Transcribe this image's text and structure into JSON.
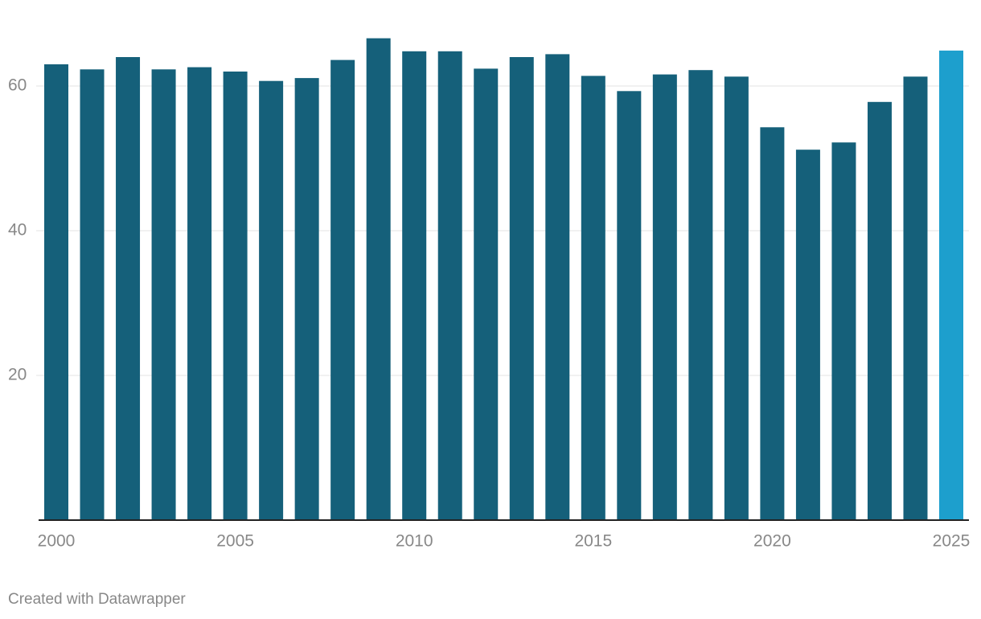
{
  "chart_data": {
    "type": "bar",
    "categories": [
      "2000",
      null,
      null,
      null,
      null,
      "2005",
      null,
      null,
      null,
      null,
      "2010",
      null,
      null,
      null,
      null,
      "2015",
      null,
      null,
      null,
      null,
      "2020",
      null,
      null,
      null,
      null,
      "2025"
    ],
    "values": [
      63.0,
      62.3,
      64.0,
      62.3,
      62.6,
      62.0,
      60.7,
      61.1,
      63.6,
      66.6,
      64.8,
      64.8,
      62.4,
      64.0,
      64.4,
      61.4,
      59.3,
      61.6,
      62.2,
      61.3,
      54.3,
      51.2,
      52.2,
      57.8,
      61.3,
      64.9
    ],
    "colors": [
      "#15607a",
      "#15607a",
      "#15607a",
      "#15607a",
      "#15607a",
      "#15607a",
      "#15607a",
      "#15607a",
      "#15607a",
      "#15607a",
      "#15607a",
      "#15607a",
      "#15607a",
      "#15607a",
      "#15607a",
      "#15607a",
      "#15607a",
      "#15607a",
      "#15607a",
      "#15607a",
      "#15607a",
      "#15607a",
      "#15607a",
      "#15607a",
      "#15607a",
      "#1d9fcd"
    ],
    "ylim": [
      0,
      70
    ],
    "yticks": [
      20,
      40,
      60
    ],
    "grid": true
  },
  "footer": "Created with Datawrapper"
}
